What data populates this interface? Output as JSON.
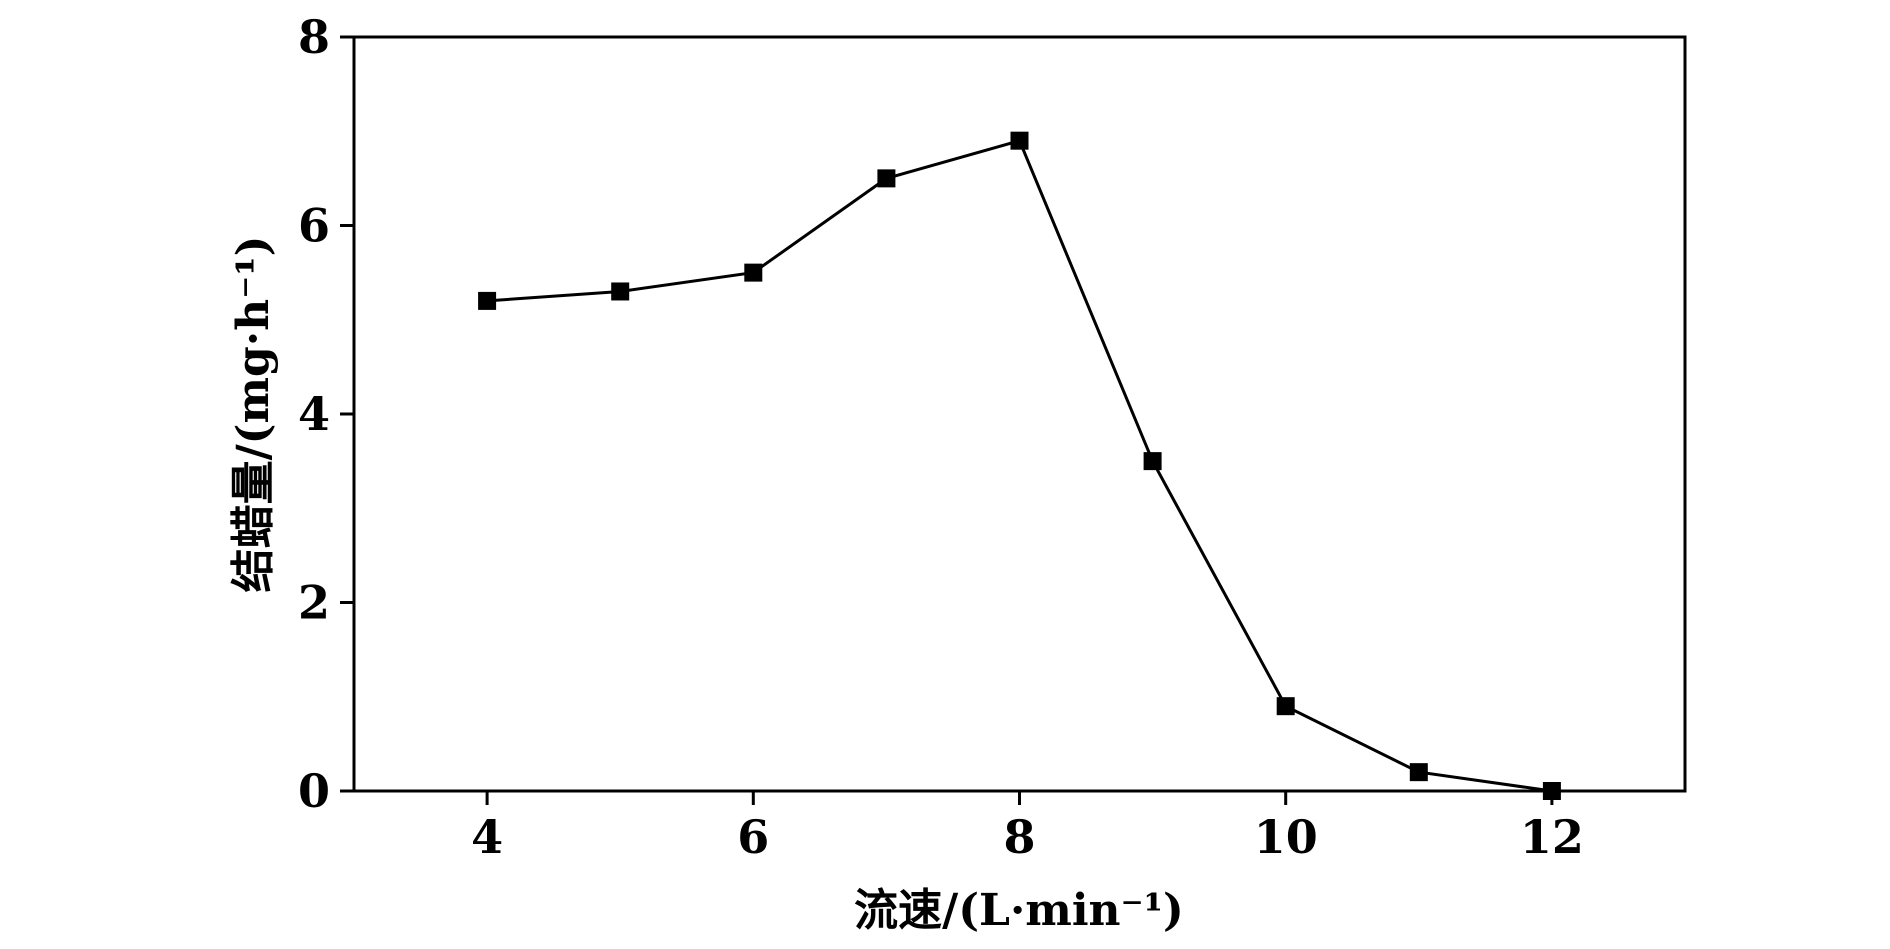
{
  "chart_data": {
    "type": "line",
    "title": "",
    "xlabel": "流速/(L·min⁻¹)",
    "ylabel": "结蜡量/(mg·h⁻¹)",
    "xlim": [
      3,
      13
    ],
    "ylim": [
      0,
      8
    ],
    "x_ticks": [
      4,
      6,
      8,
      10,
      12
    ],
    "y_ticks": [
      0,
      2,
      4,
      6,
      8
    ],
    "grid": false,
    "legend": "none",
    "series": [
      {
        "x": [
          4,
          5,
          6,
          7,
          8,
          9,
          10,
          11,
          12
        ],
        "y": [
          5.2,
          5.3,
          5.5,
          6.5,
          6.9,
          3.5,
          0.9,
          0.2,
          0.0
        ],
        "color": "#000000",
        "marker": "square"
      }
    ]
  }
}
